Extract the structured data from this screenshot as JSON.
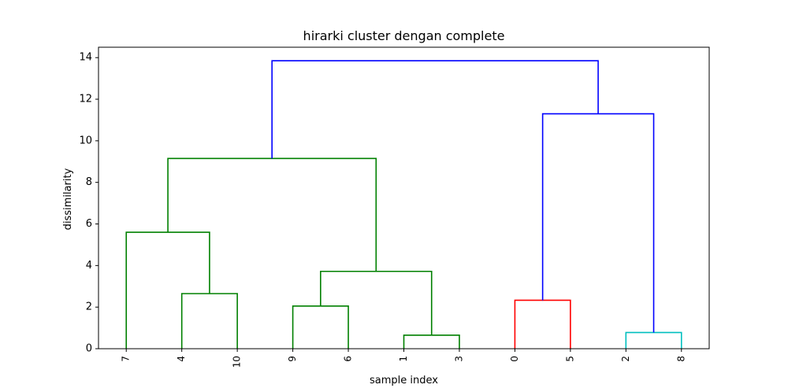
{
  "chart_data": {
    "type": "dendrogram",
    "title": "hirarki cluster dengan complete",
    "xlabel": "sample index",
    "ylabel": "dissimilarity",
    "ylim": [
      0,
      14.5
    ],
    "yticks": [
      0,
      2,
      4,
      6,
      8,
      10,
      12,
      14
    ],
    "leaf_order": [
      "7",
      "4",
      "10",
      "9",
      "6",
      "1",
      "3",
      "0",
      "5",
      "2",
      "8"
    ],
    "grid": false,
    "links": [
      {
        "left": "7",
        "right": "4,10",
        "height": 5.6,
        "color": "#008000"
      },
      {
        "left": "4",
        "right": "10",
        "height": 2.65,
        "color": "#008000"
      },
      {
        "left": "9",
        "right": "6",
        "height": 2.05,
        "color": "#008000"
      },
      {
        "left": "1",
        "right": "3",
        "height": 0.65,
        "color": "#008000"
      },
      {
        "left": "9,6",
        "right": "1,3",
        "height": 3.72,
        "color": "#008000"
      },
      {
        "left": "7,4,10",
        "right": "9,6,1,3",
        "height": 9.15,
        "color": "#008000"
      },
      {
        "left": "0",
        "right": "5",
        "height": 2.33,
        "color": "#ff0000"
      },
      {
        "left": "2",
        "right": "8",
        "height": 0.78,
        "color": "#00bfbf"
      },
      {
        "left": "0,5",
        "right": "2,8",
        "height": 11.3,
        "color": "#0000ff"
      },
      {
        "left": "7,4,10,9,6,1,3",
        "right": "0,5,2,8",
        "height": 13.85,
        "color": "#0000ff"
      }
    ]
  }
}
